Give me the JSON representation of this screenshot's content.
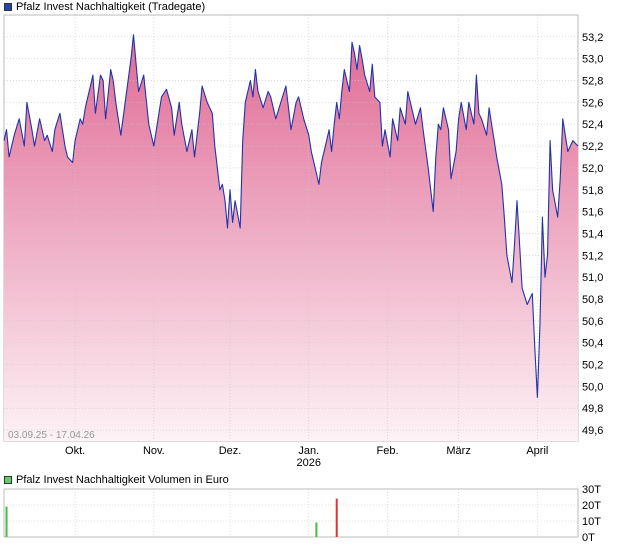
{
  "price_title": "Pfalz Invest Nachhaltigkeit (Tradegate)",
  "volume_title": "Pfalz Invest Nachhaltigkeit Volumen in Euro",
  "date_range": "03.09.25 - 17.04.26",
  "colors": {
    "line": "#2233aa",
    "fill_top": "#e06a94",
    "fill_bottom": "#fdf2f6",
    "grid": "#c8c8c8",
    "volume_buy": "#44bb44",
    "volume_sell": "#dd3333"
  },
  "chart_data": [
    {
      "type": "area",
      "title": "Pfalz Invest Nachhaltigkeit (Tradegate)",
      "ylim": [
        49.5,
        53.4
      ],
      "yticks": [
        "53,2",
        "53,0",
        "52,8",
        "52,6",
        "52,4",
        "52,2",
        "52,0",
        "51,8",
        "51,6",
        "51,4",
        "51,2",
        "51,0",
        "50,8",
        "50,6",
        "50,4",
        "50,2",
        "50,0",
        "49,8",
        "49,6"
      ],
      "ytick_values": [
        53.2,
        53.0,
        52.8,
        52.6,
        52.4,
        52.2,
        52.0,
        51.8,
        51.6,
        51.4,
        51.2,
        51.0,
        50.8,
        50.6,
        50.4,
        50.2,
        50.0,
        49.8,
        49.6
      ],
      "x_domain": [
        "2025-09-03",
        "2026-04-17"
      ],
      "month_ticks": [
        {
          "date": "2025-10-01",
          "label": "Okt.",
          "sub": ""
        },
        {
          "date": "2025-11-01",
          "label": "Nov.",
          "sub": ""
        },
        {
          "date": "2025-12-01",
          "label": "Dez.",
          "sub": ""
        },
        {
          "date": "2026-01-01",
          "label": "Jan.",
          "sub": "2026"
        },
        {
          "date": "2026-02-01",
          "label": "Feb.",
          "sub": ""
        },
        {
          "date": "2026-03-01",
          "label": "März",
          "sub": ""
        },
        {
          "date": "2026-04-01",
          "label": "April",
          "sub": ""
        }
      ],
      "series": [
        {
          "points": [
            [
              "2025-09-03",
              52.25
            ],
            [
              "2025-09-04",
              52.35
            ],
            [
              "2025-09-05",
              52.1
            ],
            [
              "2025-09-07",
              52.3
            ],
            [
              "2025-09-09",
              52.45
            ],
            [
              "2025-09-11",
              52.2
            ],
            [
              "2025-09-12",
              52.6
            ],
            [
              "2025-09-14",
              52.35
            ],
            [
              "2025-09-15",
              52.2
            ],
            [
              "2025-09-17",
              52.45
            ],
            [
              "2025-09-19",
              52.25
            ],
            [
              "2025-09-20",
              52.3
            ],
            [
              "2025-09-22",
              52.15
            ],
            [
              "2025-09-23",
              52.35
            ],
            [
              "2025-09-25",
              52.5
            ],
            [
              "2025-09-27",
              52.2
            ],
            [
              "2025-09-28",
              52.1
            ],
            [
              "2025-09-30",
              52.05
            ],
            [
              "2025-10-01",
              52.25
            ],
            [
              "2025-10-03",
              52.45
            ],
            [
              "2025-10-04",
              52.4
            ],
            [
              "2025-10-05",
              52.55
            ],
            [
              "2025-10-07",
              52.75
            ],
            [
              "2025-10-08",
              52.85
            ],
            [
              "2025-10-09",
              52.5
            ],
            [
              "2025-10-11",
              52.85
            ],
            [
              "2025-10-12",
              52.8
            ],
            [
              "2025-10-13",
              52.45
            ],
            [
              "2025-10-15",
              52.9
            ],
            [
              "2025-10-16",
              52.8
            ],
            [
              "2025-10-17",
              52.6
            ],
            [
              "2025-10-19",
              52.3
            ],
            [
              "2025-10-21",
              52.65
            ],
            [
              "2025-10-23",
              53.0
            ],
            [
              "2025-10-24",
              53.22
            ],
            [
              "2025-10-25",
              52.95
            ],
            [
              "2025-10-26",
              52.7
            ],
            [
              "2025-10-28",
              52.85
            ],
            [
              "2025-10-30",
              52.4
            ],
            [
              "2025-11-01",
              52.2
            ],
            [
              "2025-11-03",
              52.5
            ],
            [
              "2025-11-04",
              52.65
            ],
            [
              "2025-11-06",
              52.72
            ],
            [
              "2025-11-08",
              52.55
            ],
            [
              "2025-11-09",
              52.3
            ],
            [
              "2025-11-11",
              52.6
            ],
            [
              "2025-11-12",
              52.4
            ],
            [
              "2025-11-14",
              52.15
            ],
            [
              "2025-11-16",
              52.35
            ],
            [
              "2025-11-17",
              52.1
            ],
            [
              "2025-11-19",
              52.5
            ],
            [
              "2025-11-20",
              52.75
            ],
            [
              "2025-11-22",
              52.6
            ],
            [
              "2025-11-24",
              52.5
            ],
            [
              "2025-11-25",
              52.2
            ],
            [
              "2025-11-27",
              51.8
            ],
            [
              "2025-11-28",
              51.85
            ],
            [
              "2025-11-29",
              51.7
            ],
            [
              "2025-11-30",
              51.45
            ],
            [
              "2025-12-01",
              51.8
            ],
            [
              "2025-12-02",
              51.5
            ],
            [
              "2025-12-03",
              51.7
            ],
            [
              "2025-12-05",
              51.45
            ],
            [
              "2025-12-06",
              52.25
            ],
            [
              "2025-12-07",
              52.6
            ],
            [
              "2025-12-09",
              52.8
            ],
            [
              "2025-12-10",
              52.65
            ],
            [
              "2025-12-11",
              52.9
            ],
            [
              "2025-12-12",
              52.7
            ],
            [
              "2025-12-14",
              52.55
            ],
            [
              "2025-12-16",
              52.7
            ],
            [
              "2025-12-17",
              52.65
            ],
            [
              "2025-12-19",
              52.45
            ],
            [
              "2025-12-21",
              52.6
            ],
            [
              "2025-12-23",
              52.75
            ],
            [
              "2025-12-24",
              52.55
            ],
            [
              "2025-12-25",
              52.35
            ],
            [
              "2025-12-27",
              52.6
            ],
            [
              "2025-12-28",
              52.65
            ],
            [
              "2025-12-30",
              52.45
            ],
            [
              "2026-01-01",
              52.3
            ],
            [
              "2026-01-02",
              52.15
            ],
            [
              "2026-01-04",
              51.95
            ],
            [
              "2026-01-05",
              51.85
            ],
            [
              "2026-01-06",
              52.05
            ],
            [
              "2026-01-08",
              52.25
            ],
            [
              "2026-01-09",
              52.35
            ],
            [
              "2026-01-10",
              52.15
            ],
            [
              "2026-01-11",
              52.4
            ],
            [
              "2026-01-12",
              52.6
            ],
            [
              "2026-01-13",
              52.45
            ],
            [
              "2026-01-14",
              52.7
            ],
            [
              "2026-01-15",
              52.9
            ],
            [
              "2026-01-17",
              52.7
            ],
            [
              "2026-01-18",
              53.15
            ],
            [
              "2026-01-19",
              53.05
            ],
            [
              "2026-01-20",
              52.9
            ],
            [
              "2026-01-21",
              53.12
            ],
            [
              "2026-01-22",
              53.0
            ],
            [
              "2026-01-23",
              52.85
            ],
            [
              "2026-01-25",
              52.7
            ],
            [
              "2026-01-26",
              52.95
            ],
            [
              "2026-01-27",
              52.65
            ],
            [
              "2026-01-29",
              52.6
            ],
            [
              "2026-01-30",
              52.2
            ],
            [
              "2026-01-31",
              52.35
            ],
            [
              "2026-02-02",
              52.1
            ],
            [
              "2026-02-03",
              52.45
            ],
            [
              "2026-02-05",
              52.25
            ],
            [
              "2026-02-06",
              52.55
            ],
            [
              "2026-02-08",
              52.4
            ],
            [
              "2026-02-09",
              52.7
            ],
            [
              "2026-02-11",
              52.5
            ],
            [
              "2026-02-12",
              52.4
            ],
            [
              "2026-02-14",
              52.55
            ],
            [
              "2026-02-15",
              52.35
            ],
            [
              "2026-02-17",
              52.0
            ],
            [
              "2026-02-19",
              51.6
            ],
            [
              "2026-02-20",
              52.1
            ],
            [
              "2026-02-21",
              52.4
            ],
            [
              "2026-02-22",
              52.35
            ],
            [
              "2026-02-23",
              52.55
            ],
            [
              "2026-02-25",
              52.35
            ],
            [
              "2026-02-26",
              51.9
            ],
            [
              "2026-02-28",
              52.15
            ],
            [
              "2026-03-01",
              52.45
            ],
            [
              "2026-03-02",
              52.6
            ],
            [
              "2026-03-04",
              52.35
            ],
            [
              "2026-03-05",
              52.6
            ],
            [
              "2026-03-07",
              52.4
            ],
            [
              "2026-03-08",
              52.85
            ],
            [
              "2026-03-09",
              52.5
            ],
            [
              "2026-03-10",
              52.45
            ],
            [
              "2026-03-12",
              52.3
            ],
            [
              "2026-03-13",
              52.55
            ],
            [
              "2026-03-14",
              52.4
            ],
            [
              "2026-03-15",
              52.25
            ],
            [
              "2026-03-16",
              52.1
            ],
            [
              "2026-03-18",
              51.85
            ],
            [
              "2026-03-19",
              51.55
            ],
            [
              "2026-03-20",
              51.2
            ],
            [
              "2026-03-22",
              50.95
            ],
            [
              "2026-03-23",
              51.3
            ],
            [
              "2026-03-24",
              51.7
            ],
            [
              "2026-03-25",
              51.3
            ],
            [
              "2026-03-26",
              50.9
            ],
            [
              "2026-03-28",
              50.75
            ],
            [
              "2026-03-29",
              50.8
            ],
            [
              "2026-03-30",
              50.85
            ],
            [
              "2026-03-31",
              50.35
            ],
            [
              "2026-04-01",
              49.9
            ],
            [
              "2026-04-02",
              50.55
            ],
            [
              "2026-04-03",
              51.55
            ],
            [
              "2026-04-04",
              51.0
            ],
            [
              "2026-04-05",
              51.2
            ],
            [
              "2026-04-06",
              52.25
            ],
            [
              "2026-04-07",
              51.8
            ],
            [
              "2026-04-09",
              51.55
            ],
            [
              "2026-04-10",
              51.9
            ],
            [
              "2026-04-11",
              52.45
            ],
            [
              "2026-04-13",
              52.15
            ],
            [
              "2026-04-15",
              52.25
            ],
            [
              "2026-04-17",
              52.2
            ]
          ]
        }
      ]
    },
    {
      "type": "bar",
      "title": "Pfalz Invest Nachhaltigkeit Volumen in Euro",
      "ylim": [
        0,
        30000
      ],
      "yticks": [
        "30T",
        "20T",
        "10T",
        "0T"
      ],
      "ytick_values": [
        30000,
        20000,
        10000,
        0
      ],
      "bars": [
        {
          "date": "2025-09-04",
          "value": 19000,
          "color": "#44bb44"
        },
        {
          "date": "2026-01-04",
          "value": 9000,
          "color": "#44bb44"
        },
        {
          "date": "2026-01-12",
          "value": 24000,
          "color": "#dd3333"
        }
      ]
    }
  ]
}
